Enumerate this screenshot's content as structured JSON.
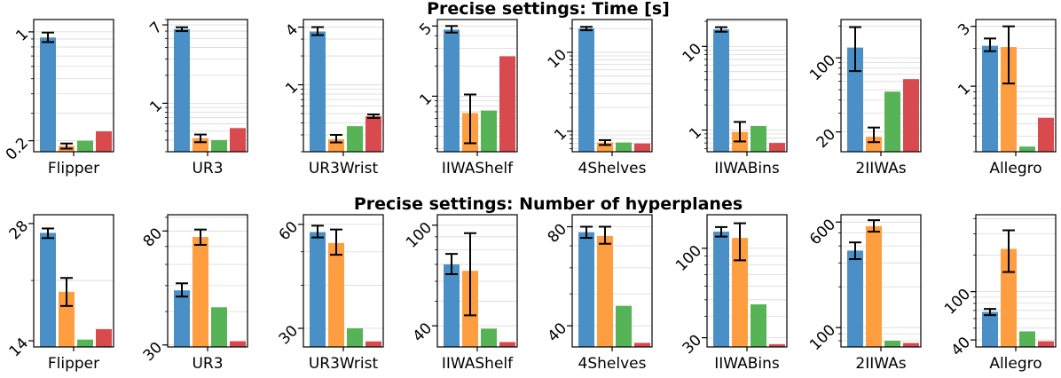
{
  "figure": {
    "row_titles": [
      "Precise settings: Time [s]",
      "Precise settings: Number of hyperplanes"
    ]
  },
  "colors": {
    "series": [
      "#4a8fc6",
      "#ff9e40",
      "#56b456",
      "#d94a4f"
    ],
    "grid": "#d9d9d9",
    "axis": "#000000"
  },
  "chart_data": [
    {
      "type": "bar",
      "row": 0,
      "scale": "log",
      "title": "",
      "xlabel": "Flipper",
      "ylim": [
        0.17,
        1.2
      ],
      "ticks": [
        {
          "value": 1,
          "label": "1"
        },
        {
          "value": 0.2,
          "label": "0.2"
        }
      ],
      "values": [
        0.92,
        0.185,
        0.2,
        0.23
      ],
      "errors": [
        [
          0.86,
          0.99
        ],
        [
          0.178,
          0.192
        ],
        null,
        null
      ]
    },
    {
      "type": "bar",
      "row": 0,
      "scale": "log",
      "title": "",
      "xlabel": "UR3",
      "ylim": [
        0.3,
        8
      ],
      "ticks": [
        {
          "value": 7,
          "label": "7"
        },
        {
          "value": 1,
          "label": "1"
        }
      ],
      "values": [
        6.3,
        0.42,
        0.4,
        0.54
      ],
      "errors": [
        [
          6.0,
          6.6
        ],
        [
          0.38,
          0.46
        ],
        null,
        null
      ]
    },
    {
      "type": "bar",
      "row": 0,
      "scale": "log",
      "title": "",
      "xlabel": "UR3Wrist",
      "ylim": [
        0.2,
        4.8
      ],
      "ticks": [
        {
          "value": 4,
          "label": "4"
        },
        {
          "value": 1,
          "label": "1"
        }
      ],
      "values": [
        3.6,
        0.27,
        0.37,
        0.47
      ],
      "errors": [
        [
          3.3,
          4.0
        ],
        [
          0.25,
          0.3
        ],
        null,
        [
          0.45,
          0.49
        ]
      ]
    },
    {
      "type": "bar",
      "row": 0,
      "scale": "log",
      "title": "",
      "xlabel": "IIWAShelf",
      "ylim": [
        0.28,
        5.8
      ],
      "ticks": [
        {
          "value": 5,
          "label": "5"
        },
        {
          "value": 1,
          "label": "1"
        }
      ],
      "values": [
        4.6,
        0.68,
        0.72,
        2.5
      ],
      "errors": [
        [
          4.3,
          5.0
        ],
        [
          0.34,
          1.04
        ],
        null,
        null
      ]
    },
    {
      "type": "bar",
      "row": 0,
      "scale": "log",
      "title": "",
      "xlabel": "4Shelves",
      "ylim": [
        0.55,
        26
      ],
      "ticks": [
        {
          "value": 10,
          "label": "10"
        },
        {
          "value": 1,
          "label": "1"
        }
      ],
      "values": [
        20,
        0.72,
        0.72,
        0.7
      ],
      "errors": [
        [
          19,
          21
        ],
        [
          0.67,
          0.77
        ],
        null,
        null
      ]
    },
    {
      "type": "bar",
      "row": 0,
      "scale": "log",
      "title": "",
      "xlabel": "IIWABins",
      "ylim": [
        0.55,
        21
      ],
      "ticks": [
        {
          "value": 10,
          "label": "10"
        },
        {
          "value": 1,
          "label": "1"
        }
      ],
      "values": [
        16,
        0.95,
        1.12,
        0.7
      ],
      "errors": [
        [
          15,
          17
        ],
        [
          0.73,
          1.25
        ],
        null,
        null
      ]
    },
    {
      "type": "bar",
      "row": 0,
      "scale": "log",
      "title": "",
      "xlabel": "2IIWAs",
      "ylim": [
        13,
        230
      ],
      "ticks": [
        {
          "value": 100,
          "label": "100"
        },
        {
          "value": 20,
          "label": "20"
        }
      ],
      "values": [
        125,
        18,
        48,
        63
      ],
      "errors": [
        [
          75,
          195
        ],
        [
          16,
          22
        ],
        null,
        null
      ]
    },
    {
      "type": "bar",
      "row": 0,
      "scale": "log",
      "title": "",
      "xlabel": "Allegro",
      "ylim": [
        0.3,
        3.4
      ],
      "ticks": [
        {
          "value": 3,
          "label": "3"
        },
        {
          "value": 1,
          "label": "1"
        }
      ],
      "values": [
        2.1,
        2.05,
        0.33,
        0.56
      ],
      "errors": [
        [
          1.9,
          2.4
        ],
        [
          1.05,
          3.0
        ],
        null,
        null
      ]
    },
    {
      "type": "bar",
      "row": 1,
      "scale": "log",
      "title": "",
      "xlabel": "Flipper",
      "ylim": [
        13.5,
        29.5
      ],
      "ticks": [
        {
          "value": 28,
          "label": "28"
        },
        {
          "value": 14,
          "label": "14"
        }
      ],
      "values": [
        26.5,
        18.7,
        14.1,
        15.0
      ],
      "errors": [
        [
          25.7,
          27.2
        ],
        [
          17.2,
          20.3
        ],
        null,
        null
      ]
    },
    {
      "type": "bar",
      "row": 1,
      "scale": "log",
      "title": "",
      "xlabel": "UR3",
      "ylim": [
        29.5,
        92
      ],
      "ticks": [
        {
          "value": 80,
          "label": "80"
        },
        {
          "value": 30,
          "label": "30"
        }
      ],
      "values": [
        48,
        76,
        41.5,
        31
      ],
      "errors": [
        [
          45.5,
          51
        ],
        [
          71,
          81
        ],
        null,
        null
      ]
    },
    {
      "type": "bar",
      "row": 1,
      "scale": "log",
      "title": "",
      "xlabel": "UR3Wrist",
      "ylim": [
        26.5,
        64
      ],
      "ticks": [
        {
          "value": 60,
          "label": "60"
        },
        {
          "value": 30,
          "label": "30"
        }
      ],
      "values": [
        57,
        53,
        30,
        27.5
      ],
      "errors": [
        [
          55,
          59.5
        ],
        [
          49,
          58
        ],
        null,
        null
      ]
    },
    {
      "type": "bar",
      "row": 1,
      "scale": "log",
      "title": "",
      "xlabel": "IIWAShelf",
      "ylim": [
        33,
        110
      ],
      "ticks": [
        {
          "value": 100,
          "label": "100"
        },
        {
          "value": 40,
          "label": "40"
        }
      ],
      "values": [
        70,
        66,
        39,
        34.5
      ],
      "errors": [
        [
          64,
          77
        ],
        [
          44,
          93
        ],
        null,
        null
      ]
    },
    {
      "type": "bar",
      "row": 1,
      "scale": "log",
      "title": "",
      "xlabel": "4Shelves",
      "ylim": [
        34.5,
        87
      ],
      "ticks": [
        {
          "value": 80,
          "label": "80"
        },
        {
          "value": 40,
          "label": "40"
        }
      ],
      "values": [
        77,
        75,
        46,
        35.5
      ],
      "errors": [
        [
          74,
          80
        ],
        [
          71,
          80
        ],
        null,
        null
      ]
    },
    {
      "type": "bar",
      "row": 1,
      "scale": "log",
      "title": "",
      "xlabel": "IIWABins",
      "ylim": [
        26.5,
        157
      ],
      "ticks": [
        {
          "value": 100,
          "label": "100"
        },
        {
          "value": 30,
          "label": "30"
        }
      ],
      "values": [
        125,
        115,
        47,
        27.5
      ],
      "errors": [
        [
          117,
          133
        ],
        [
          85,
          140
        ],
        null,
        null
      ]
    },
    {
      "type": "bar",
      "row": 1,
      "scale": "log",
      "title": "",
      "xlabel": "2IIWAs",
      "ylim": [
        72,
        680
      ],
      "ticks": [
        {
          "value": 600,
          "label": "600"
        },
        {
          "value": 100,
          "label": "100"
        }
      ],
      "values": [
        370,
        560,
        80,
        77
      ],
      "errors": [
        [
          320,
          425
        ],
        [
          510,
          620
        ],
        null,
        null
      ]
    },
    {
      "type": "bar",
      "row": 1,
      "scale": "log",
      "title": "",
      "xlabel": "Allegro",
      "ylim": [
        35,
        430
      ],
      "ticks": [
        {
          "value": 100,
          "label": "100"
        },
        {
          "value": 40,
          "label": "40"
        }
      ],
      "values": [
        68,
        225,
        47,
        39
      ],
      "errors": [
        [
          64,
          72
        ],
        [
          145,
          320
        ],
        null,
        null
      ]
    }
  ]
}
